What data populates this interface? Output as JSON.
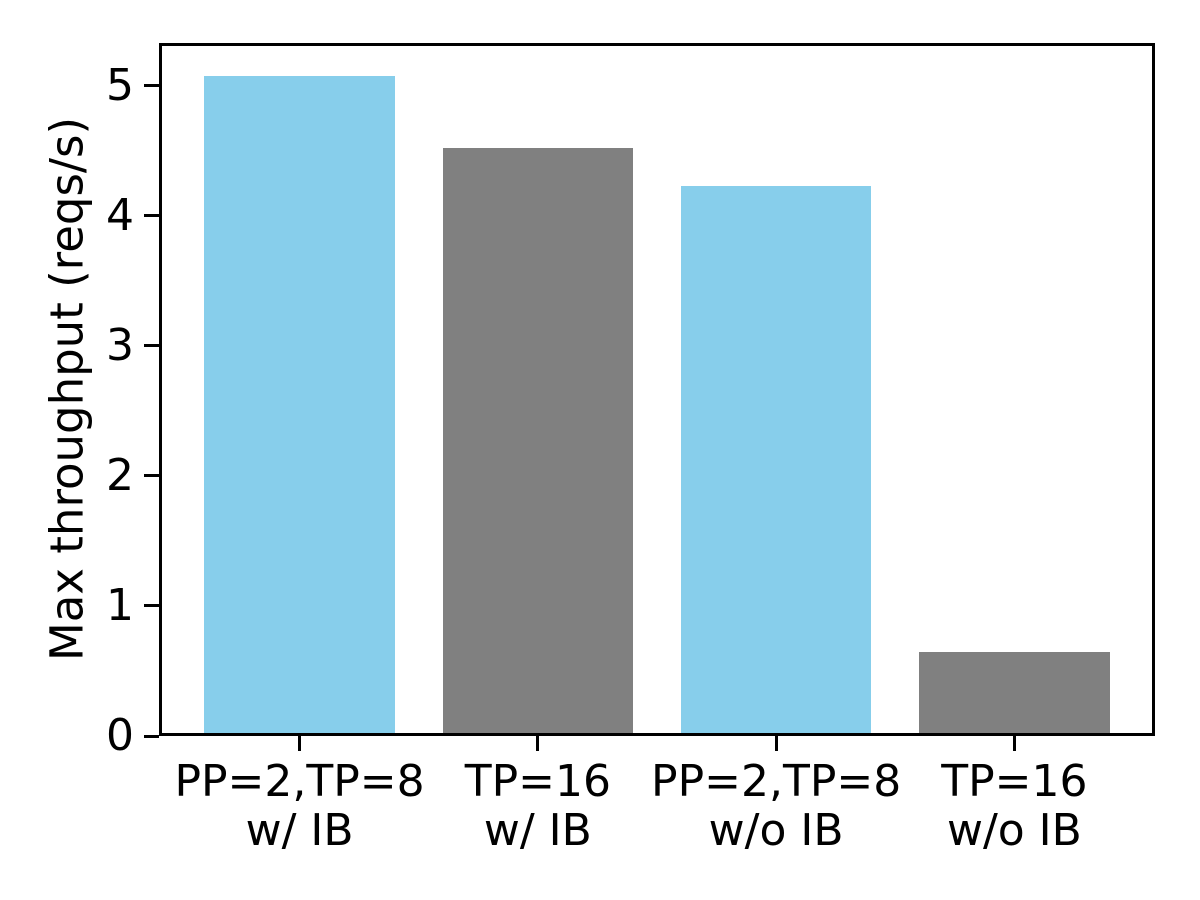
{
  "chart_data": {
    "type": "bar",
    "title": "",
    "xlabel": "",
    "ylabel": "Max throughput (reqs/s)",
    "categories": [
      "PP=2,TP=8 w/ IB",
      "TP=16 w/ IB",
      "PP=2,TP=8 w/o IB",
      "TP=16 w/o IB"
    ],
    "category_lines": [
      [
        "PP=2,TP=8",
        "w/ IB"
      ],
      [
        "TP=16",
        "w/ IB"
      ],
      [
        "PP=2,TP=8",
        "w/o IB"
      ],
      [
        "TP=16",
        "w/o IB"
      ]
    ],
    "values": [
      5.08,
      4.52,
      4.23,
      0.65
    ],
    "bar_colors": [
      "#87CEEB",
      "#808080",
      "#87CEEB",
      "#808080"
    ],
    "yticks": [
      0,
      1,
      2,
      3,
      4,
      5
    ],
    "ylim": [
      0,
      5.33
    ],
    "xlim": [
      -0.59,
      3.59
    ],
    "bar_width": 0.8,
    "grid": false,
    "legend": null,
    "axis_color": "#000000",
    "background_color": "#ffffff"
  }
}
